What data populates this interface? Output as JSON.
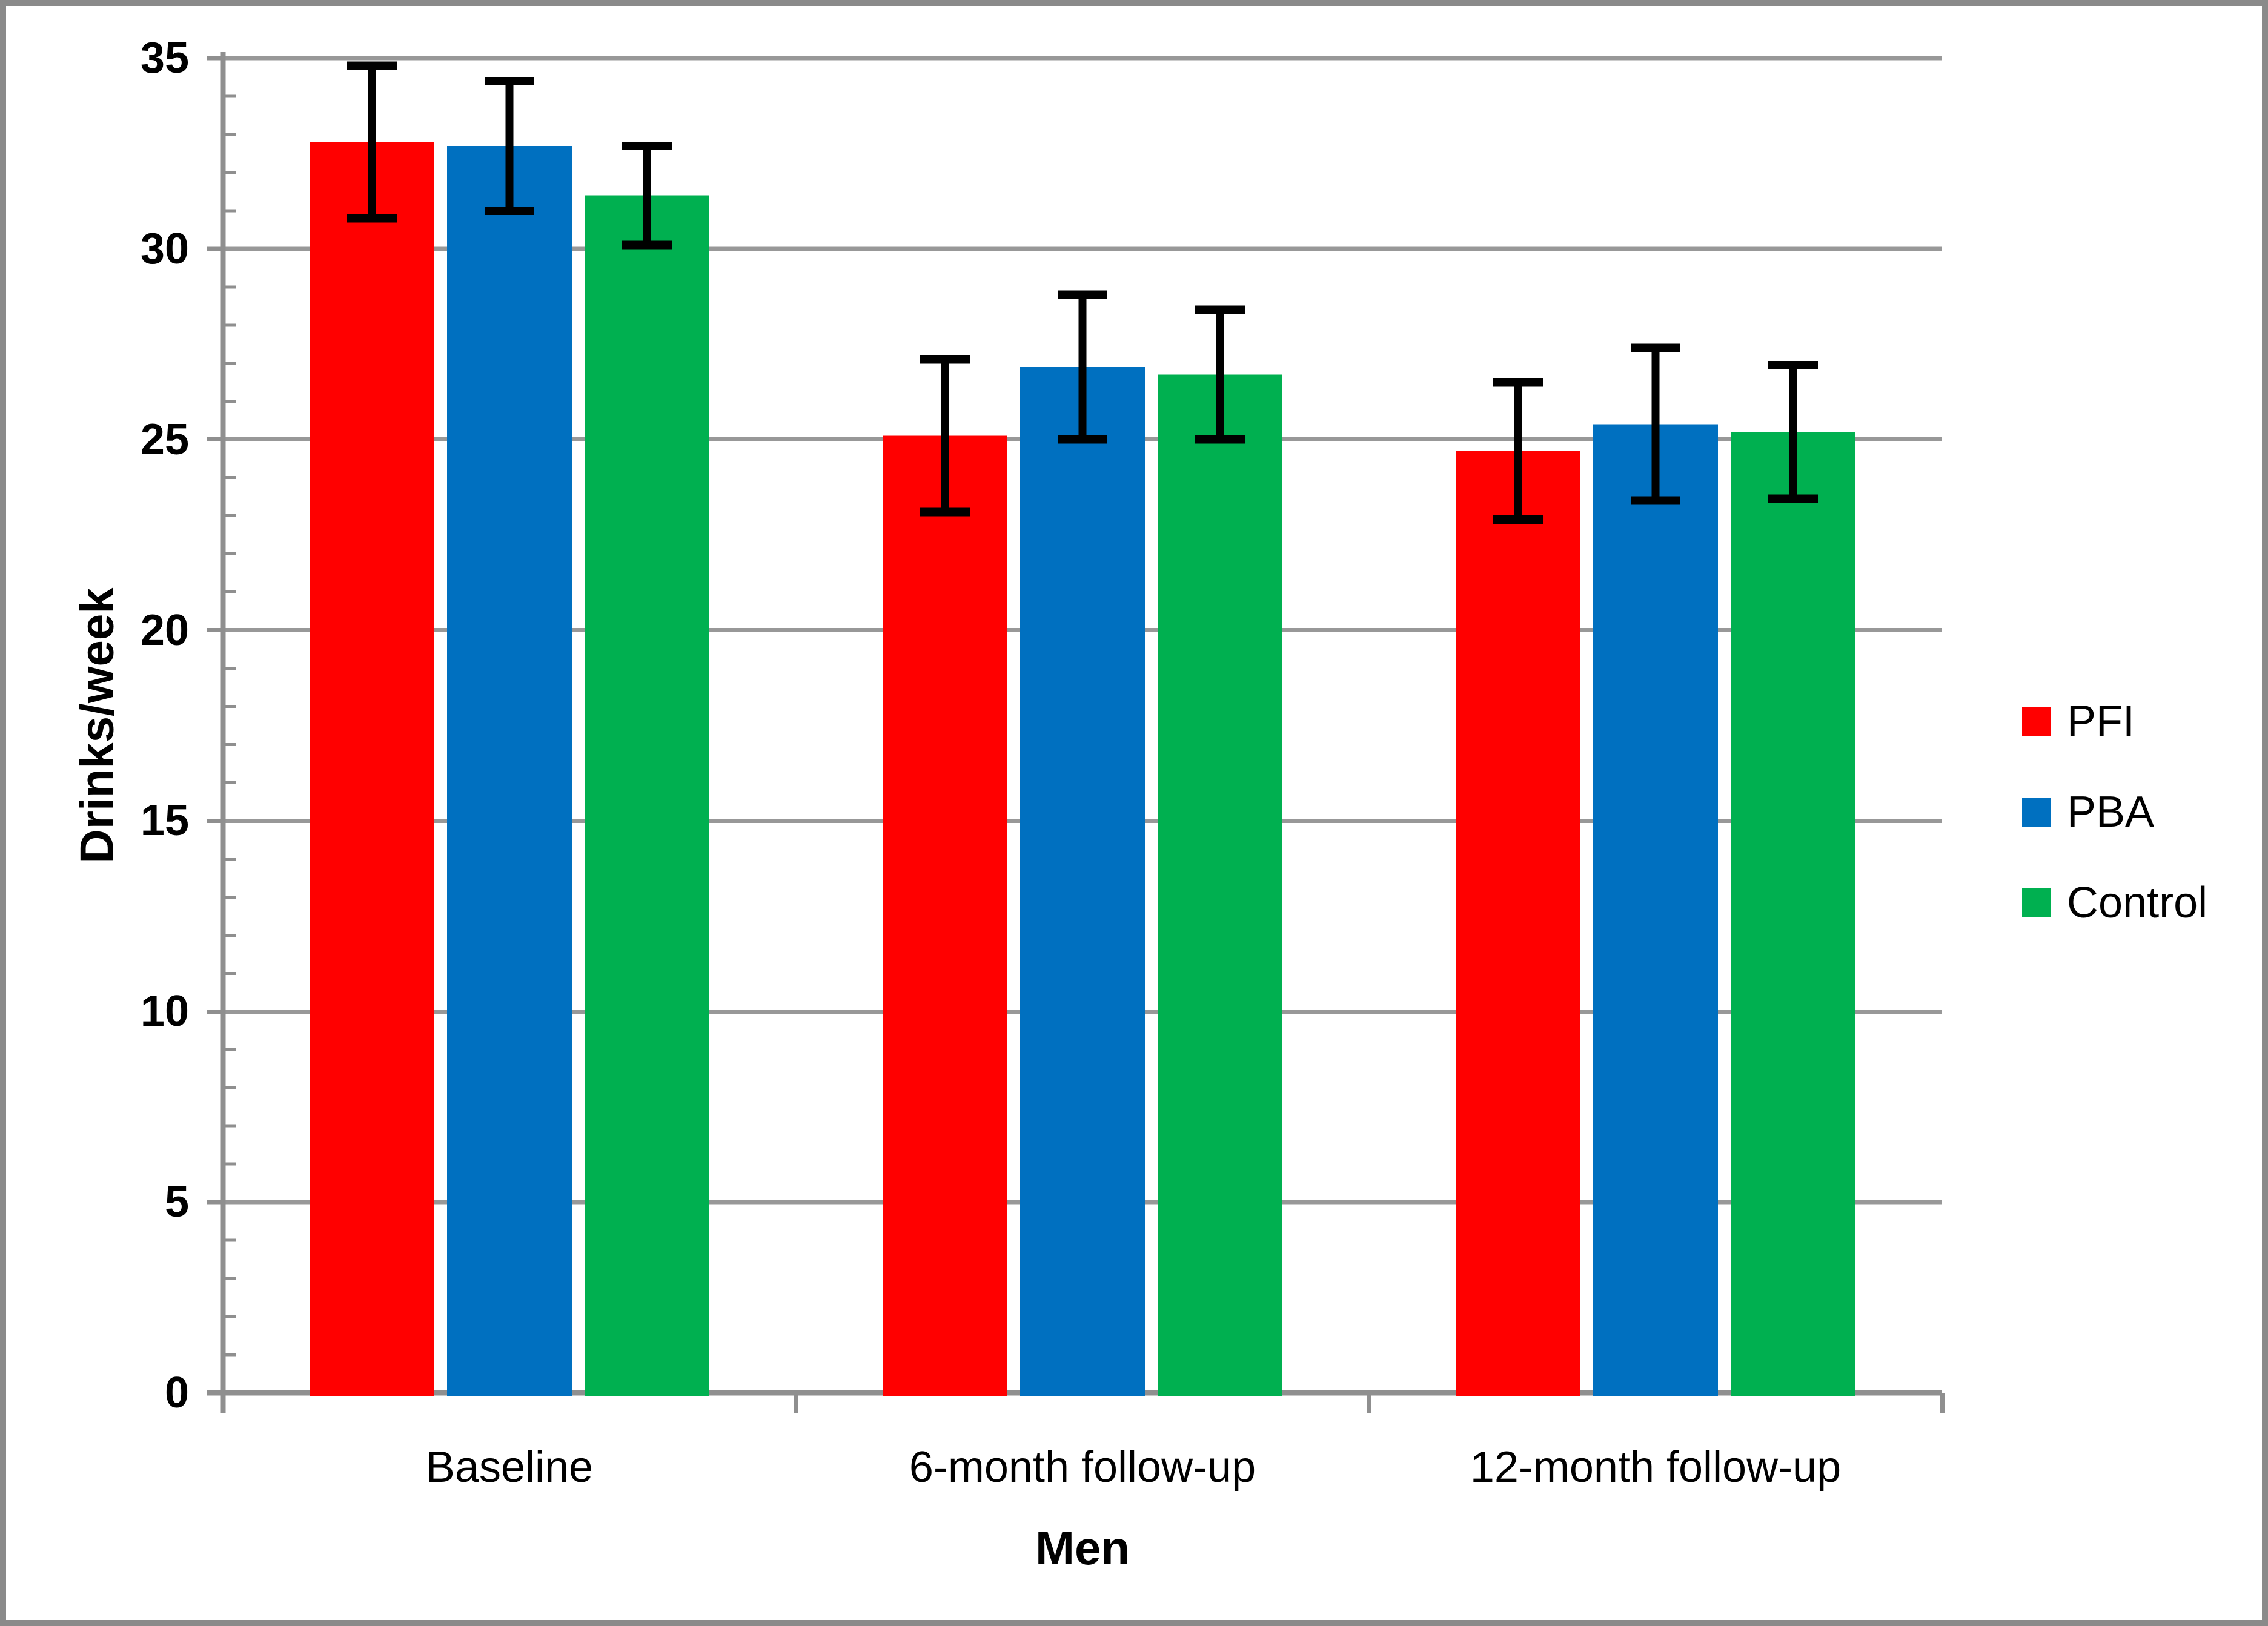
{
  "chart_data": {
    "type": "bar",
    "categories": [
      "Baseline",
      "6-month follow-up",
      "12-month follow-up"
    ],
    "series": [
      {
        "name": "PFI",
        "color": "#FF0000",
        "values": [
          32.8,
          25.1,
          24.7
        ],
        "errors": [
          2.0,
          2.0,
          1.8
        ]
      },
      {
        "name": "PBA",
        "color": "#0070C0",
        "values": [
          32.7,
          26.9,
          25.4
        ],
        "errors": [
          1.7,
          1.9,
          2.0
        ]
      },
      {
        "name": "Control",
        "color": "#00B050",
        "values": [
          31.4,
          26.7,
          25.2
        ],
        "errors": [
          1.3,
          1.7,
          1.75
        ]
      }
    ],
    "xlabel": "Men",
    "ylabel": "Drinks/week",
    "ylim": [
      0,
      35
    ],
    "ytick_step": 5,
    "yticks": [
      0,
      5,
      10,
      15,
      20,
      25,
      30,
      35
    ],
    "minor_tick_step": 1,
    "grid": true,
    "legend_position": "right",
    "error_bar_color": "#000000",
    "axis_color": "#8F8F8F",
    "gridline_color": "#989898",
    "frame_border_color": "#8A8A8A",
    "background_color": "#FFFFFF"
  }
}
